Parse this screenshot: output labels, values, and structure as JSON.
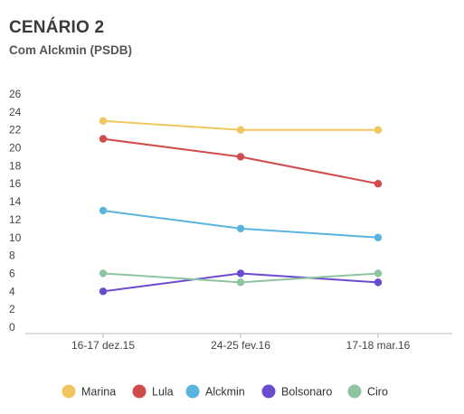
{
  "chart_data": {
    "type": "line",
    "title": "CENÁRIO 2",
    "subtitle": "Com Alckmin (PSDB)",
    "categories": [
      "16-17 dez.15",
      "24-25 fev.16",
      "17-18 mar.16"
    ],
    "ylim": [
      0,
      26
    ],
    "yticks": [
      0,
      2,
      4,
      6,
      8,
      10,
      12,
      14,
      16,
      18,
      20,
      22,
      24,
      26
    ],
    "grid": false,
    "legend_position": "bottom",
    "series": [
      {
        "name": "Marina",
        "color": "#efc75e",
        "values": [
          23,
          22,
          22
        ]
      },
      {
        "name": "Lula",
        "color": "#d14b4b",
        "values": [
          21,
          19,
          16
        ]
      },
      {
        "name": "Alckmin",
        "color": "#5ab4e0",
        "values": [
          13,
          11,
          10
        ]
      },
      {
        "name": "Bolsonaro",
        "color": "#6a4bcf",
        "values": [
          4,
          6,
          5
        ]
      },
      {
        "name": "Ciro",
        "color": "#8fc4a0",
        "values": [
          6,
          5,
          6
        ]
      }
    ]
  }
}
